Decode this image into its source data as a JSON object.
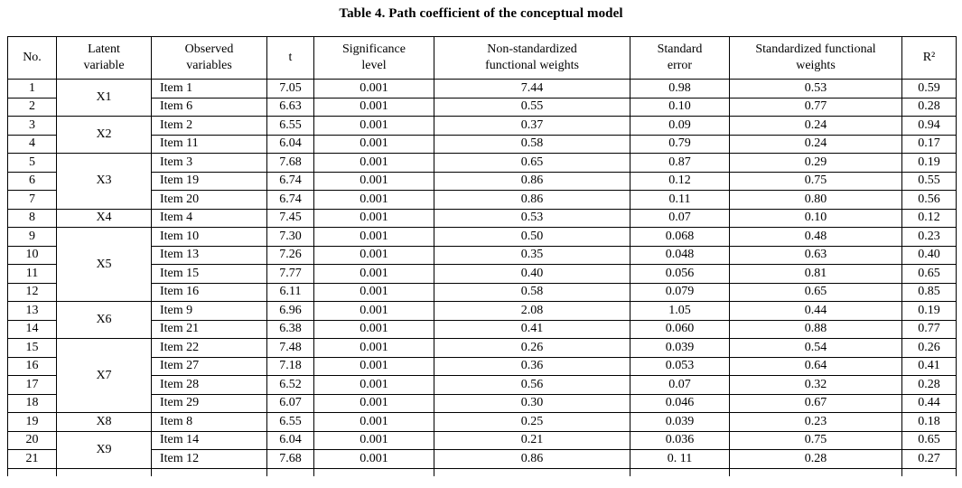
{
  "title": "Table 4. Path coefficient of the conceptual model",
  "table": {
    "headers": [
      "No.",
      "Latent\nvariable",
      "Observed\nvariables",
      "t",
      "Significance\nlevel",
      "Non-standardized\nfunctional weights",
      "Standard\nerror",
      "Standardized functional\nweights",
      "R²"
    ],
    "rows": [
      {
        "no": "1",
        "latent": "X1",
        "latent_span": 2,
        "item": "Item 1",
        "t": "7.05",
        "sig": "0.001",
        "nonstd": "7.44",
        "stderr": "0.98",
        "std": "0.53",
        "r2": "0.59"
      },
      {
        "no": "2",
        "item": "Item 6",
        "t": "6.63",
        "sig": "0.001",
        "nonstd": "0.55",
        "stderr": "0.10",
        "std": "0.77",
        "r2": "0.28"
      },
      {
        "no": "3",
        "latent": "X2",
        "latent_span": 2,
        "item": "Item 2",
        "t": "6.55",
        "sig": "0.001",
        "nonstd": "0.37",
        "stderr": "0.09",
        "std": "0.24",
        "r2": "0.94"
      },
      {
        "no": "4",
        "item": "Item 11",
        "t": "6.04",
        "sig": "0.001",
        "nonstd": "0.58",
        "stderr": "0.79",
        "std": "0.24",
        "r2": "0.17"
      },
      {
        "no": "5",
        "latent": "X3",
        "latent_span": 3,
        "item": "Item 3",
        "t": "7.68",
        "sig": "0.001",
        "nonstd": "0.65",
        "stderr": "0.87",
        "std": "0.29",
        "r2": "0.19"
      },
      {
        "no": "6",
        "item": "Item 19",
        "t": "6.74",
        "sig": "0.001",
        "nonstd": "0.86",
        "stderr": "0.12",
        "std": "0.75",
        "r2": "0.55"
      },
      {
        "no": "7",
        "item": "Item 20",
        "t": "6.74",
        "sig": "0.001",
        "nonstd": "0.86",
        "stderr": "0.11",
        "std": "0.80",
        "r2": "0.56"
      },
      {
        "no": "8",
        "latent": "X4",
        "latent_span": 1,
        "item": "Item 4",
        "t": "7.45",
        "sig": "0.001",
        "nonstd": "0.53",
        "stderr": "0.07",
        "std": "0.10",
        "r2": "0.12"
      },
      {
        "no": "9",
        "latent": "X5",
        "latent_span": 4,
        "item": "Item 10",
        "t": "7.30",
        "sig": "0.001",
        "nonstd": "0.50",
        "stderr": "0.068",
        "std": "0.48",
        "r2": "0.23"
      },
      {
        "no": "10",
        "item": "Item 13",
        "t": "7.26",
        "sig": "0.001",
        "nonstd": "0.35",
        "stderr": "0.048",
        "std": "0.63",
        "r2": "0.40"
      },
      {
        "no": "11",
        "item": "Item 15",
        "t": "7.77",
        "sig": "0.001",
        "nonstd": "0.40",
        "stderr": "0.056",
        "std": "0.81",
        "r2": "0.65"
      },
      {
        "no": "12",
        "item": "Item 16",
        "t": "6.11",
        "sig": "0.001",
        "nonstd": "0.58",
        "stderr": "0.079",
        "std": "0.65",
        "r2": "0.85"
      },
      {
        "no": "13",
        "latent": "X6",
        "latent_span": 2,
        "item": "Item 9",
        "t": "6.96",
        "sig": "0.001",
        "nonstd": "2.08",
        "stderr": "1.05",
        "std": "0.44",
        "r2": "0.19"
      },
      {
        "no": "14",
        "item": "Item 21",
        "t": "6.38",
        "sig": "0.001",
        "nonstd": "0.41",
        "stderr": "0.060",
        "std": "0.88",
        "r2": "0.77"
      },
      {
        "no": "15",
        "latent": "X7",
        "latent_span": 4,
        "item": "Item 22",
        "t": "7.48",
        "sig": "0.001",
        "nonstd": "0.26",
        "stderr": "0.039",
        "std": "0.54",
        "r2": "0.26"
      },
      {
        "no": "16",
        "item": "Item 27",
        "t": "7.18",
        "sig": "0.001",
        "nonstd": "0.36",
        "stderr": "0.053",
        "std": "0.64",
        "r2": "0.41"
      },
      {
        "no": "17",
        "item": "Item 28",
        "t": "6.52",
        "sig": "0.001",
        "nonstd": "0.56",
        "stderr": "0.07",
        "std": "0.32",
        "r2": "0.28"
      },
      {
        "no": "18",
        "item": "Item 29",
        "t": "6.07",
        "sig": "0.001",
        "nonstd": "0.30",
        "stderr": "0.046",
        "std": "0.67",
        "r2": "0.44"
      },
      {
        "no": "19",
        "latent": "X8",
        "latent_span": 1,
        "item": "Item 8",
        "t": "6.55",
        "sig": "0.001",
        "nonstd": "0.25",
        "stderr": "0.039",
        "std": "0.23",
        "r2": "0.18"
      },
      {
        "no": "20",
        "latent": "X9",
        "latent_span": 2,
        "item": "Item 14",
        "t": "6.04",
        "sig": "0.001",
        "nonstd": "0.21",
        "stderr": "0.036",
        "std": "0.75",
        "r2": "0.65"
      },
      {
        "no": "21",
        "item": "Item 12",
        "t": "7.68",
        "sig": "0.001",
        "nonstd": "0.86",
        "stderr": "0. 11",
        "std": "0.28",
        "r2": "0.27"
      }
    ]
  }
}
